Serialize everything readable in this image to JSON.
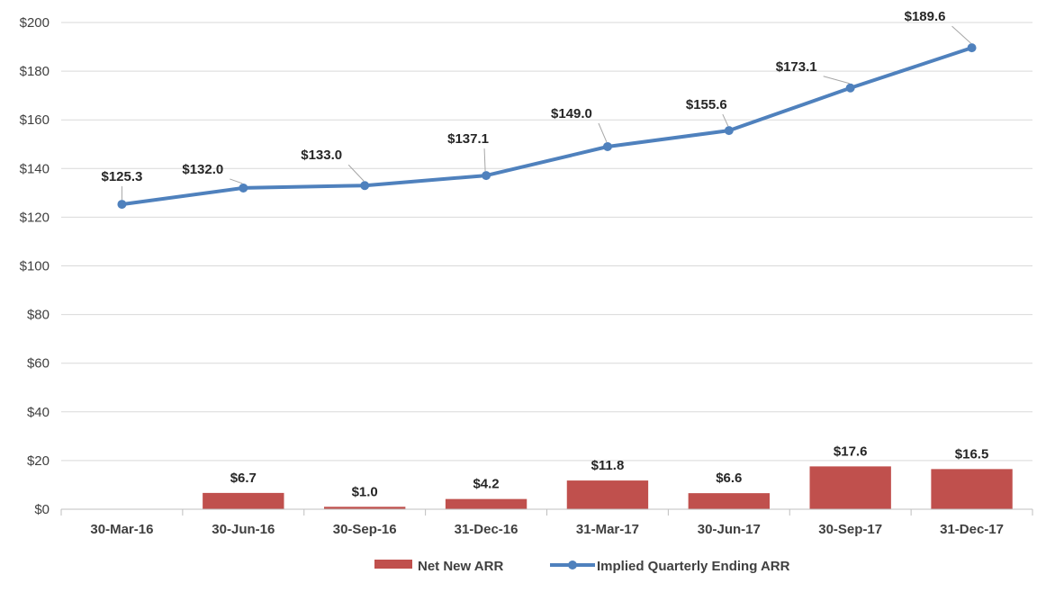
{
  "chart_data": {
    "type": "bar+line",
    "title": "",
    "xlabel": "",
    "ylabel": "",
    "categories": [
      "30-Mar-16",
      "30-Jun-16",
      "30-Sep-16",
      "31-Dec-16",
      "31-Mar-17",
      "30-Jun-17",
      "30-Sep-17",
      "31-Dec-17"
    ],
    "ylim": [
      0,
      200
    ],
    "yticks": [
      0,
      20,
      40,
      60,
      80,
      100,
      120,
      140,
      160,
      180,
      200
    ],
    "ytick_labels": [
      "$0",
      "$20",
      "$40",
      "$60",
      "$80",
      "$100",
      "$120",
      "$140",
      "$160",
      "$180",
      "$200"
    ],
    "grid": true,
    "legend_position": "bottom",
    "series": [
      {
        "name": "Net New ARR",
        "kind": "bar",
        "color": "#C0504D",
        "values": [
          null,
          6.7,
          1.0,
          4.2,
          11.8,
          6.6,
          17.6,
          16.5
        ],
        "labels": [
          "",
          "$6.7",
          "$1.0",
          "$4.2",
          "$11.8",
          "$6.6",
          "$17.6",
          "$16.5"
        ]
      },
      {
        "name": "Implied Quarterly Ending ARR",
        "kind": "line",
        "color": "#4F81BD",
        "values": [
          125.3,
          132.0,
          133.0,
          137.1,
          149.0,
          155.6,
          173.1,
          189.6
        ],
        "labels": [
          "$125.3",
          "$132.0",
          "$133.0",
          "$137.1",
          "$149.0",
          "$155.6",
          "$173.1",
          "$189.6"
        ]
      }
    ]
  }
}
